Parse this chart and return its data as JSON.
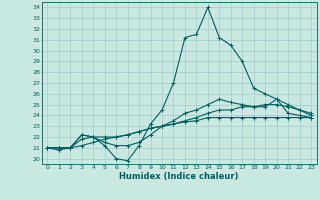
{
  "xlabel": "Humidex (Indice chaleur)",
  "xlim": [
    -0.5,
    23.5
  ],
  "ylim": [
    19.5,
    34.5
  ],
  "yticks": [
    20,
    21,
    22,
    23,
    24,
    25,
    26,
    27,
    28,
    29,
    30,
    31,
    32,
    33,
    34
  ],
  "xticks": [
    0,
    1,
    2,
    3,
    4,
    5,
    6,
    7,
    8,
    9,
    10,
    11,
    12,
    13,
    14,
    15,
    16,
    17,
    18,
    19,
    20,
    21,
    22,
    23
  ],
  "background_color": "#c8e8e0",
  "grid_color": "#a0cccc",
  "line_color": "#006060",
  "line1": [
    21.0,
    20.8,
    21.0,
    22.2,
    22.0,
    21.2,
    20.0,
    19.8,
    21.2,
    23.2,
    24.5,
    27.0,
    31.2,
    31.5,
    34.0,
    31.2,
    30.5,
    29.0,
    26.5,
    26.0,
    25.5,
    24.2,
    24.0,
    23.8
  ],
  "line2": [
    21.0,
    21.0,
    21.0,
    22.2,
    22.0,
    21.5,
    21.2,
    21.2,
    21.5,
    22.2,
    23.0,
    23.5,
    24.2,
    24.5,
    25.0,
    25.5,
    25.2,
    25.0,
    24.8,
    24.8,
    25.5,
    25.0,
    24.5,
    24.0
  ],
  "line3": [
    21.0,
    21.0,
    21.0,
    21.8,
    22.0,
    22.0,
    22.0,
    22.2,
    22.5,
    22.8,
    23.0,
    23.2,
    23.5,
    23.8,
    24.2,
    24.5,
    24.5,
    24.8,
    24.8,
    25.0,
    25.0,
    24.8,
    24.5,
    24.2
  ],
  "line4": [
    21.0,
    21.0,
    21.0,
    21.2,
    21.5,
    21.8,
    22.0,
    22.2,
    22.5,
    22.8,
    23.0,
    23.2,
    23.4,
    23.5,
    23.8,
    23.8,
    23.8,
    23.8,
    23.8,
    23.8,
    23.8,
    23.8,
    23.8,
    23.8
  ]
}
